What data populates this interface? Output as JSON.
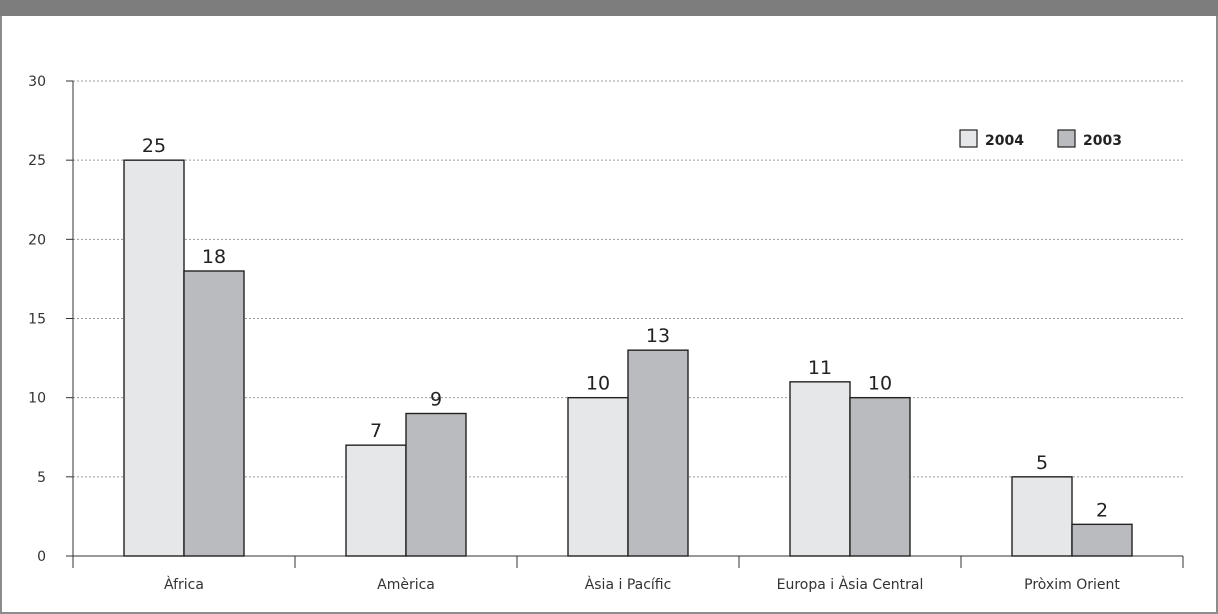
{
  "chart_data": {
    "type": "bar",
    "categories": [
      "Àfrica",
      "Amèrica",
      "Àsia i Pacífic",
      "Europa i Àsia Central",
      "Pròxim Orient"
    ],
    "series": [
      {
        "name": "2004",
        "values": [
          25,
          7,
          10,
          11,
          5
        ],
        "color": "#e6e7e8"
      },
      {
        "name": "2003",
        "values": [
          18,
          9,
          13,
          10,
          2
        ],
        "color": "#b9bbbe"
      }
    ],
    "title": "",
    "xlabel": "",
    "ylabel": "",
    "ylim": [
      0,
      30
    ],
    "yticks": [
      "0",
      "5",
      "10",
      "15",
      "20",
      "25",
      "30"
    ],
    "grid": true,
    "legend": "top-right",
    "colors": {
      "bar_stroke": "#222222",
      "grid": "#9a9a9a",
      "frame": "#7d7d7d"
    }
  }
}
